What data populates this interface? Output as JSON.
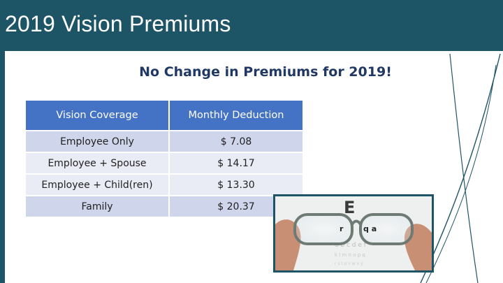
{
  "slide": {
    "title": "2019 Vision Premiums",
    "subtitle": "No Change in Premiums for 2019!"
  },
  "table": {
    "headers": [
      "Vision Coverage",
      "Monthly Deduction"
    ],
    "rows": [
      {
        "coverage": "Employee Only",
        "deduction": "$ 7.08"
      },
      {
        "coverage": "Employee + Spouse",
        "deduction": "$ 14.17"
      },
      {
        "coverage": "Employee + Child(ren)",
        "deduction": "$ 13.30"
      },
      {
        "coverage": "Family",
        "deduction": "$ 20.37"
      }
    ]
  },
  "colors": {
    "title_bar": "#1e5566",
    "subtitle_text": "#203864",
    "table_header": "#4472c4",
    "row_odd": "#cfd5ea",
    "row_even": "#e9ebf5"
  },
  "images": {
    "eyeglasses_photo": "eye-chart-glasses-photo"
  }
}
